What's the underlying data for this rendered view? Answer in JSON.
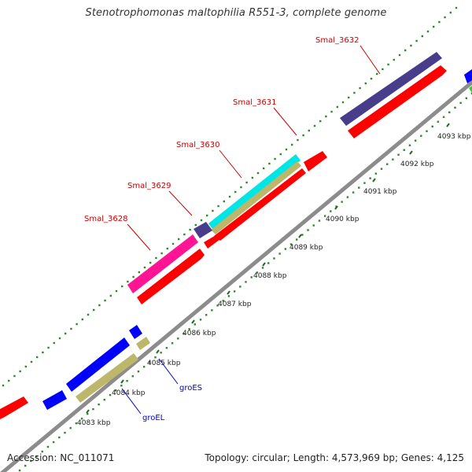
{
  "title": "Stenotrophomonas maltophilia R551-3, complete genome",
  "footer": {
    "accession": "Accession: NC_011071",
    "summary": "Topology: circular; Length: 4,573,969 bp; Genes: 4,125"
  },
  "colors": {
    "background": "#ffffff",
    "backbone": "#8c8c8c",
    "tick_dot": "#2a8a2a",
    "major_tick": "#1d6b1d",
    "gene_red": "#ff0000",
    "gene_blue": "#0000ff",
    "gene_magenta": "#ff1493",
    "gene_cyan": "#00e5e5",
    "gene_khaki": "#bdb76b",
    "gene_navy": "#483d8b",
    "gene_green": "#32cd32",
    "label_red": "#cc0000",
    "label_blue": "#0000cc"
  },
  "scale": {
    "unit": "kbp",
    "ticks": [
      {
        "label": "4083 kbp"
      },
      {
        "label": "4084 kbp"
      },
      {
        "label": "4085 kbp"
      },
      {
        "label": "4086 kbp"
      },
      {
        "label": "4087 kbp"
      },
      {
        "label": "4088 kbp"
      },
      {
        "label": "4089 kbp"
      },
      {
        "label": "4090 kbp"
      },
      {
        "label": "4091 kbp"
      },
      {
        "label": "4092 kbp"
      },
      {
        "label": "4093 kbp"
      }
    ]
  },
  "labels": {
    "top": [
      {
        "text": "Smal_3632",
        "color": "label_red"
      },
      {
        "text": "Smal_3631",
        "color": "label_red"
      },
      {
        "text": "Smal_3630",
        "color": "label_red"
      },
      {
        "text": "Smal_3629",
        "color": "label_red"
      },
      {
        "text": "Smal_3628",
        "color": "label_red"
      }
    ],
    "bottom": [
      {
        "text": "groES",
        "color": "label_blue"
      },
      {
        "text": "groEL",
        "color": "label_blue"
      }
    ]
  }
}
